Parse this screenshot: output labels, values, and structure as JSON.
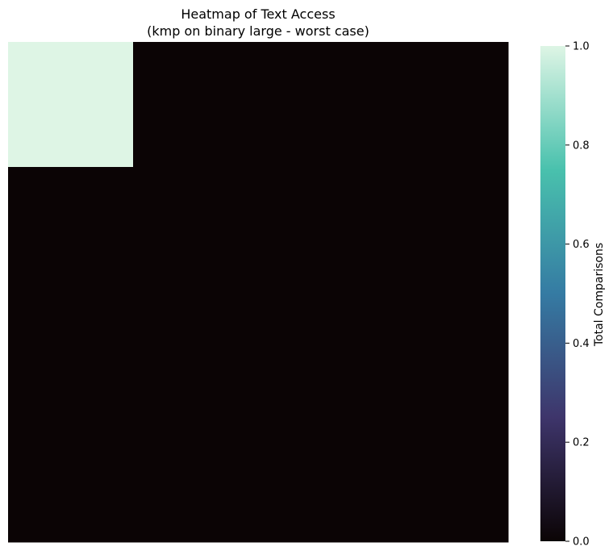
{
  "chart_data": {
    "type": "heatmap",
    "title": "Heatmap of Text Access",
    "subtitle": "(kmp on binary large - worst case)",
    "xlabel": "",
    "ylabel": "",
    "grid": false,
    "axes_ticks_shown": false,
    "rows": 4,
    "cols": 4,
    "values": [
      [
        1,
        0,
        0,
        0
      ],
      [
        0,
        0,
        0,
        0
      ],
      [
        0,
        0,
        0,
        0
      ],
      [
        0,
        0,
        0,
        0
      ]
    ],
    "colormap": "mako",
    "colormap_stops": [
      "#0b0405",
      "#3e356b",
      "#357ba3",
      "#49c1ad",
      "#def5e5"
    ],
    "colorbar": {
      "label": "Total Comparisons",
      "range": [
        0.0,
        1.0
      ],
      "ticks": [
        "0.0",
        "0.2",
        "0.4",
        "0.6",
        "0.8",
        "1.0"
      ],
      "placement": "right"
    }
  }
}
